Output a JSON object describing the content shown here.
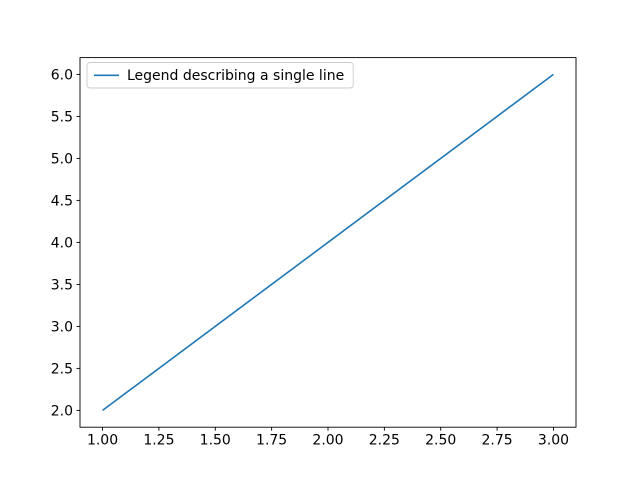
{
  "chart_data": {
    "type": "line",
    "title": "",
    "xlabel": "",
    "ylabel": "",
    "series": [
      {
        "name": "Legend describing a single line",
        "x": [
          1.0,
          3.0
        ],
        "y": [
          2.0,
          6.0
        ],
        "color": "#1f77b4",
        "linewidth": 1.6
      }
    ],
    "xlim": [
      0.9,
      3.1
    ],
    "ylim": [
      1.8,
      6.2
    ],
    "xtick_values": [
      1.0,
      1.25,
      1.5,
      1.75,
      2.0,
      2.25,
      2.5,
      2.75,
      3.0
    ],
    "xtick_labels": [
      "1.00",
      "1.25",
      "1.50",
      "1.75",
      "2.00",
      "2.25",
      "2.50",
      "2.75",
      "3.00"
    ],
    "ytick_values": [
      2.0,
      2.5,
      3.0,
      3.5,
      4.0,
      4.5,
      5.0,
      5.5,
      6.0
    ],
    "ytick_labels": [
      "2.0",
      "2.5",
      "3.0",
      "3.5",
      "4.0",
      "4.5",
      "5.0",
      "5.5",
      "6.0"
    ],
    "grid": false,
    "legend": {
      "label": "Legend describing a single line",
      "position": "upper left",
      "line_color": "#1f77b4",
      "border_color": "#cccccc",
      "background": "#ffffff",
      "text_color": "#000000"
    },
    "colors": {
      "figure_background": "#ffffff",
      "plot_background": "#ffffff",
      "axes_edge": "#000000",
      "tick_color": "#000000"
    }
  }
}
